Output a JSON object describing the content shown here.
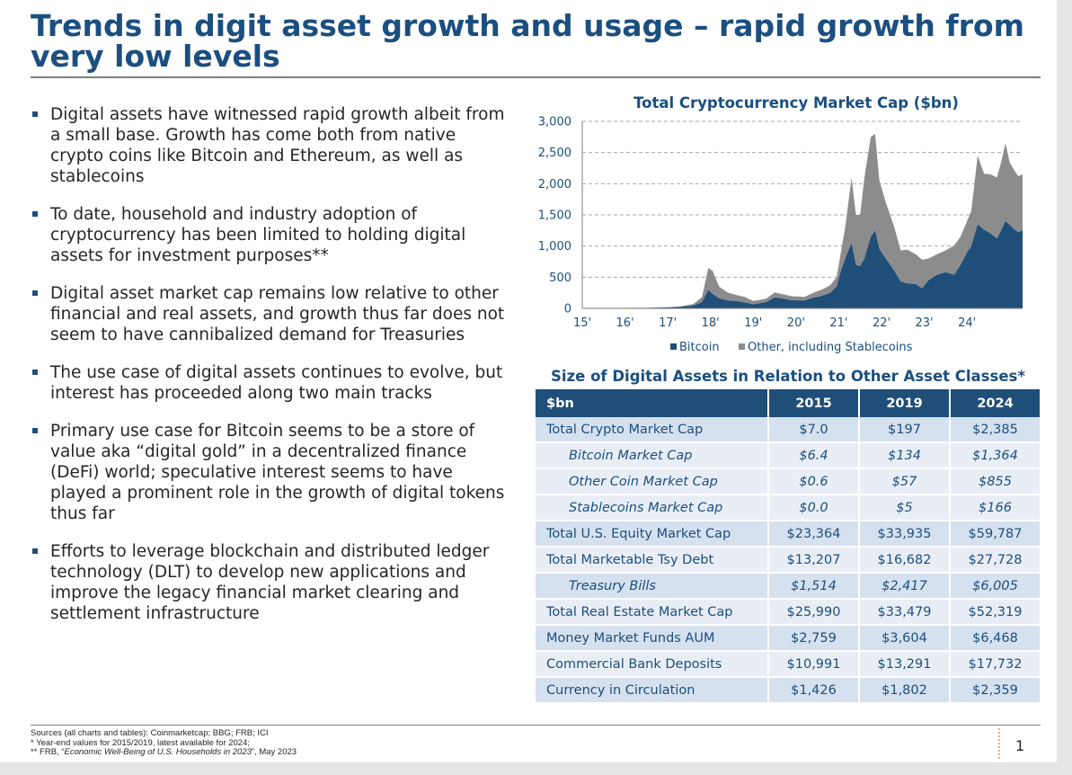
{
  "title": "Trends in digit asset growth and usage – rapid growth from very low levels",
  "bullets": [
    "Digital assets have witnessed rapid growth albeit from a small base. Growth has come both from native crypto coins like Bitcoin and Ethereum, as well as stablecoins",
    "To date, household and industry adoption of cryptocurrency has been limited to holding digital assets for investment purposes**",
    "Digital asset market cap remains low relative to other financial and real assets, and growth thus far does not seem to have cannibalized demand for Treasuries",
    "The use case of digital assets continues to evolve, but interest has proceeded along two main tracks",
    "Primary use case for Bitcoin seems to be a store of value aka “digital gold” in a decentralized finance (DeFi) world; speculative interest seems to have played a prominent role in the growth of digital tokens thus far",
    "Efforts to leverage blockchain and distributed ledger technology (DLT) to develop new applications and improve the legacy financial market clearing and settlement infrastructure"
  ],
  "chart_data": {
    "type": "area",
    "stacked": true,
    "title": "Total Cryptocurrency Market Cap ($bn)",
    "xlabel": "",
    "ylabel": "",
    "x_tick_labels": [
      "15'",
      "16'",
      "17'",
      "18'",
      "19'",
      "20'",
      "21'",
      "22'",
      "23'",
      "24'"
    ],
    "y_tick_labels": [
      "0",
      "500",
      "1,000",
      "1,500",
      "2,000",
      "2,500",
      "3,000"
    ],
    "ylim": [
      0,
      3000
    ],
    "grid": "horizontal dashed",
    "legend_position": "bottom",
    "x": [
      2015.0,
      2015.5,
      2016.0,
      2016.5,
      2017.0,
      2017.3,
      2017.6,
      2017.8,
      2017.95,
      2018.05,
      2018.2,
      2018.4,
      2018.6,
      2018.8,
      2019.0,
      2019.3,
      2019.5,
      2019.7,
      2019.9,
      2020.2,
      2020.4,
      2020.6,
      2020.8,
      2020.95,
      2021.05,
      2021.15,
      2021.3,
      2021.4,
      2021.5,
      2021.6,
      2021.75,
      2021.85,
      2021.95,
      2022.1,
      2022.3,
      2022.45,
      2022.6,
      2022.8,
      2022.95,
      2023.1,
      2023.3,
      2023.5,
      2023.7,
      2023.85,
      2024.0,
      2024.1,
      2024.25,
      2024.4,
      2024.55,
      2024.7,
      2024.8,
      2024.9,
      2025.0,
      2025.1,
      2025.2,
      2025.3
    ],
    "series": [
      {
        "name": "Bitcoin",
        "color": "#1f4e79",
        "values": [
          4,
          5,
          7,
          9,
          16,
          25,
          45,
          100,
          300,
          230,
          160,
          125,
          115,
          95,
          65,
          100,
          175,
          155,
          130,
          125,
          170,
          200,
          250,
          350,
          600,
          800,
          1050,
          700,
          680,
          800,
          1150,
          1250,
          950,
          800,
          600,
          430,
          400,
          390,
          320,
          450,
          540,
          580,
          540,
          700,
          900,
          1000,
          1350,
          1260,
          1200,
          1120,
          1250,
          1400,
          1340,
          1270,
          1220,
          1250
        ]
      },
      {
        "name": "Other, including Stablecoins",
        "color": "#8c8c8c",
        "values": [
          1,
          1,
          1,
          2,
          3,
          8,
          25,
          80,
          350,
          370,
          190,
          130,
          100,
          90,
          55,
          55,
          80,
          70,
          65,
          60,
          80,
          100,
          120,
          150,
          300,
          500,
          1050,
          800,
          820,
          1300,
          1600,
          1550,
          1100,
          900,
          700,
          500,
          540,
          480,
          460,
          350,
          330,
          350,
          470,
          450,
          500,
          560,
          1100,
          900,
          950,
          980,
          1100,
          1250,
          1000,
          950,
          900,
          900
        ]
      }
    ]
  },
  "table": {
    "title": "Size of Digital Assets in Relation to Other Asset Classes*",
    "headers": [
      "$bn",
      "2015",
      "2019",
      "2024"
    ],
    "rows": [
      {
        "cells": [
          "Total Crypto Market Cap",
          "$7.0",
          "$197",
          "$2,385"
        ]
      },
      {
        "cells": [
          "Bitcoin Market Cap",
          "$6.4",
          "$134",
          "$1,364"
        ]
      },
      {
        "cells": [
          "Other Coin Market Cap",
          "$0.6",
          "$57",
          "$855"
        ]
      },
      {
        "cells": [
          "Stablecoins Market Cap",
          "$0.0",
          "$5",
          "$166"
        ]
      },
      {
        "cells": [
          "Total U.S. Equity Market Cap",
          "$23,364",
          "$33,935",
          "$59,787"
        ]
      },
      {
        "cells": [
          "Total Marketable Tsy Debt",
          "$13,207",
          "$16,682",
          "$27,728"
        ]
      },
      {
        "cells": [
          "Treasury Bills",
          "$1,514",
          "$2,417",
          "$6,005"
        ]
      },
      {
        "cells": [
          "Total Real Estate Market Cap",
          "$25,990",
          "$33,479",
          "$52,319"
        ]
      },
      {
        "cells": [
          "Money Market Funds AUM",
          "$2,759",
          "$3,604",
          "$6,468"
        ]
      },
      {
        "cells": [
          "Commercial Bank Deposits",
          "$10,991",
          "$13,291",
          "$17,732"
        ]
      },
      {
        "cells": [
          "Currency in Circulation",
          "$1,426",
          "$1,802",
          "$2,359"
        ]
      }
    ]
  },
  "footnotes": {
    "line1": "Sources (all charts and tables): Coinmarketcap; BBG; FRB; ICI",
    "line2": "* Year-end values for 2015/2019, latest available for 2024;",
    "line3_prefix": "** FRB, “",
    "line3_italic": "Economic Well-Being of U.S. Households in 2023",
    "line3_suffix": "”, May 2023"
  },
  "page_number": "1"
}
